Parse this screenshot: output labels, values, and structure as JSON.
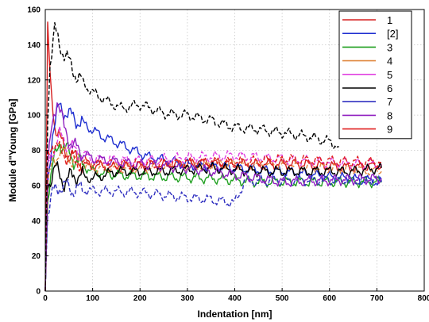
{
  "chart_data": {
    "type": "line",
    "title": "",
    "xlabel": "Indentation [nm]",
    "ylabel": "Module d\"Young [GPa]",
    "xlim": [
      0,
      800
    ],
    "ylim": [
      0,
      160
    ],
    "x_ticks": [
      0,
      100,
      200,
      300,
      400,
      500,
      600,
      700,
      800
    ],
    "y_ticks": [
      0,
      20,
      40,
      60,
      80,
      100,
      120,
      140,
      160
    ],
    "grid": true,
    "legend_position": "top-right",
    "series": [
      {
        "name": "1",
        "color": "#d62020",
        "dash": false,
        "x": [
          0,
          5,
          10,
          20,
          40,
          80,
          150,
          250,
          350,
          450,
          550,
          650,
          710
        ],
        "y": [
          0,
          150,
          120,
          95,
          80,
          72,
          70,
          72,
          73,
          72,
          72,
          70,
          72
        ]
      },
      {
        "name": "[2]",
        "color": "#1f2fd0",
        "dash": false,
        "x": [
          0,
          5,
          15,
          30,
          50,
          80,
          120,
          170,
          220,
          300,
          400,
          500,
          600,
          710
        ],
        "y": [
          0,
          60,
          90,
          105,
          100,
          95,
          88,
          82,
          76,
          72,
          70,
          68,
          65,
          62
        ]
      },
      {
        "name": "3",
        "color": "#20a020",
        "dash": false,
        "x": [
          0,
          5,
          15,
          30,
          60,
          100,
          150,
          250,
          350,
          450,
          550,
          650,
          710
        ],
        "y": [
          0,
          55,
          70,
          85,
          75,
          68,
          66,
          65,
          64,
          62,
          62,
          62,
          62
        ]
      },
      {
        "name": "4",
        "color": "#e08840",
        "dash": true,
        "x": [
          0,
          5,
          15,
          30,
          60,
          100,
          200,
          300,
          400,
          500,
          600,
          710
        ],
        "y": [
          0,
          60,
          72,
          80,
          74,
          70,
          70,
          71,
          72,
          72,
          70,
          68
        ]
      },
      {
        "name": "5",
        "color": "#e040e0",
        "dash": true,
        "x": [
          0,
          5,
          15,
          30,
          60,
          100,
          200,
          300,
          400,
          500,
          600,
          710
        ],
        "y": [
          0,
          70,
          80,
          88,
          80,
          75,
          74,
          76,
          77,
          75,
          73,
          72
        ]
      },
      {
        "name": "6",
        "color": "#000000",
        "dash": false,
        "x": [
          0,
          5,
          20,
          40,
          60,
          100,
          150,
          250,
          350,
          450,
          550,
          650,
          710
        ],
        "y": [
          0,
          60,
          70,
          62,
          66,
          64,
          68,
          68,
          70,
          68,
          68,
          68,
          70
        ]
      },
      {
        "name": "7",
        "color": "#3030c0",
        "dash": true,
        "x": [
          0,
          5,
          15,
          30,
          60,
          100,
          200,
          300,
          350,
          400,
          420,
          500,
          600,
          710
        ],
        "y": [
          0,
          45,
          55,
          60,
          58,
          57,
          56,
          53,
          52,
          50,
          62,
          63,
          63,
          63
        ]
      },
      {
        "name": "8",
        "color": "#9020c0",
        "dash": false,
        "x": [
          0,
          5,
          15,
          25,
          40,
          60,
          100,
          200,
          300,
          400,
          500,
          600,
          710
        ],
        "y": [
          0,
          70,
          95,
          110,
          92,
          82,
          75,
          72,
          70,
          66,
          62,
          63,
          64
        ]
      },
      {
        "name": "9",
        "color": "#e02020",
        "dash": true,
        "x": [
          0,
          5,
          15,
          30,
          60,
          100,
          200,
          300,
          400,
          500,
          600,
          710
        ],
        "y": [
          0,
          75,
          85,
          80,
          74,
          72,
          72,
          73,
          73,
          75,
          74,
          73
        ]
      },
      {
        "name": "",
        "color": "#000000",
        "dash": true,
        "x": [
          0,
          5,
          10,
          20,
          30,
          40,
          60,
          80,
          100,
          130,
          160,
          200,
          250,
          300,
          350,
          400,
          450,
          500,
          550,
          600,
          620
        ],
        "y": [
          0,
          100,
          130,
          148,
          140,
          135,
          125,
          118,
          113,
          108,
          104,
          106,
          101,
          100,
          97,
          93,
          92,
          90,
          88,
          85,
          82
        ]
      }
    ]
  }
}
